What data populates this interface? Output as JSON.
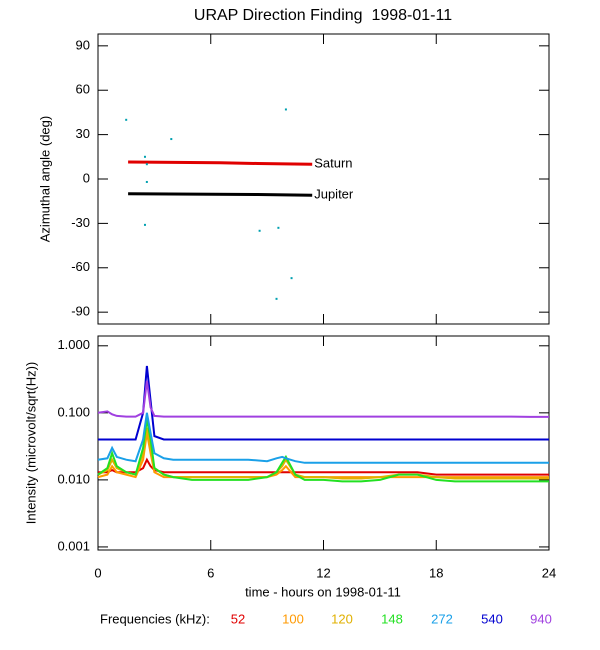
{
  "chart_data": [
    {
      "type": "scatter",
      "title": "URAP Direction Finding  1998-01-11",
      "ylabel": "Azimuthal angle (deg)",
      "xlim": [
        0,
        24
      ],
      "xticks": [
        0,
        6,
        12,
        18,
        24
      ],
      "ylim": [
        -98,
        98
      ],
      "yticks": [
        -90,
        -60,
        -30,
        0,
        30,
        60,
        90
      ],
      "color": "#00a0b0",
      "x": [
        1.5,
        2.5,
        2.6,
        2.6,
        2.5,
        3.9,
        10,
        8.6,
        9.6,
        10.3,
        9.5
      ],
      "values": [
        40,
        15,
        10,
        -2,
        -31,
        27,
        47,
        -35,
        -33,
        -67,
        -81
      ],
      "series": [
        {
          "name": "Saturn",
          "color": "#e00000",
          "x": [
            1.6,
            6.5,
            8.5,
            11.4
          ],
          "values": [
            11.5,
            11,
            10.5,
            10
          ]
        },
        {
          "name": "Jupiter",
          "color": "#000000",
          "x": [
            1.6,
            8.5,
            11.4
          ],
          "values": [
            -10,
            -10.5,
            -11
          ]
        }
      ]
    },
    {
      "type": "line",
      "log_scale": true,
      "ylabel": "Intensity (microvolt/sqrt(Hz))",
      "xlabel": "time - hours on 1998-01-11",
      "legend_title": "Frequencies (kHz):",
      "xlim": [
        0,
        24
      ],
      "xticks": [
        0,
        6,
        12,
        18,
        24
      ],
      "ylim": [
        0.0009,
        1.4
      ],
      "yticks": [
        {
          "value": 0.001,
          "label": "0.001"
        },
        {
          "value": 0.01,
          "label": "0.010"
        },
        {
          "value": 0.1,
          "label": "0.100"
        },
        {
          "value": 1,
          "label": "1.000"
        }
      ],
      "x": [
        0,
        0.5,
        0.75,
        1,
        1.5,
        2,
        2.4,
        2.6,
        2.8,
        3,
        3.5,
        4,
        5,
        6,
        7,
        8,
        9,
        9.5,
        9.8,
        10,
        10.5,
        11,
        12,
        13,
        14,
        15,
        16,
        17,
        18,
        19,
        20,
        21,
        22,
        23,
        24
      ],
      "series": [
        {
          "name": "52",
          "color": "#e00000",
          "values": [
            0.013,
            0.013,
            0.014,
            0.013,
            0.013,
            0.013,
            0.015,
            0.02,
            0.016,
            0.014,
            0.013,
            0.013,
            0.013,
            0.013,
            0.013,
            0.013,
            0.013,
            0.013,
            0.013,
            0.013,
            0.013,
            0.013,
            0.013,
            0.013,
            0.013,
            0.013,
            0.013,
            0.013,
            0.012,
            0.012,
            0.012,
            0.012,
            0.012,
            0.012,
            0.012
          ]
        },
        {
          "name": "100",
          "color": "#ff9900",
          "values": [
            0.011,
            0.012,
            0.016,
            0.013,
            0.012,
            0.011,
            0.02,
            0.05,
            0.025,
            0.013,
            0.011,
            0.011,
            0.011,
            0.011,
            0.011,
            0.011,
            0.011,
            0.012,
            0.014,
            0.016,
            0.011,
            0.011,
            0.011,
            0.011,
            0.011,
            0.011,
            0.011,
            0.011,
            0.011,
            0.011,
            0.011,
            0.011,
            0.011,
            0.011,
            0.011
          ]
        },
        {
          "name": "120",
          "color": "#e0b000",
          "values": [
            0.012,
            0.014,
            0.02,
            0.015,
            0.013,
            0.012,
            0.025,
            0.06,
            0.03,
            0.015,
            0.012,
            0.011,
            0.011,
            0.011,
            0.011,
            0.011,
            0.011,
            0.013,
            0.016,
            0.02,
            0.012,
            0.011,
            0.011,
            0.0105,
            0.0105,
            0.011,
            0.012,
            0.012,
            0.011,
            0.0105,
            0.0105,
            0.0105,
            0.0105,
            0.0105,
            0.0105
          ]
        },
        {
          "name": "148",
          "color": "#22e022",
          "values": [
            0.012,
            0.015,
            0.025,
            0.016,
            0.013,
            0.012,
            0.03,
            0.08,
            0.04,
            0.015,
            0.012,
            0.011,
            0.01,
            0.01,
            0.01,
            0.01,
            0.011,
            0.013,
            0.018,
            0.022,
            0.012,
            0.01,
            0.01,
            0.0095,
            0.0095,
            0.01,
            0.012,
            0.012,
            0.01,
            0.0095,
            0.0095,
            0.0095,
            0.0095,
            0.0095,
            0.0095
          ]
        },
        {
          "name": "272",
          "color": "#1aa0e8",
          "values": [
            0.02,
            0.021,
            0.03,
            0.022,
            0.02,
            0.019,
            0.04,
            0.1,
            0.05,
            0.025,
            0.021,
            0.02,
            0.02,
            0.02,
            0.02,
            0.02,
            0.019,
            0.021,
            0.022,
            0.021,
            0.019,
            0.018,
            0.018,
            0.018,
            0.018,
            0.018,
            0.018,
            0.018,
            0.018,
            0.018,
            0.018,
            0.018,
            0.018,
            0.018,
            0.018
          ]
        },
        {
          "name": "540",
          "color": "#0000d0",
          "values": [
            0.04,
            0.04,
            0.04,
            0.04,
            0.04,
            0.04,
            0.1,
            0.5,
            0.15,
            0.045,
            0.04,
            0.04,
            0.04,
            0.04,
            0.04,
            0.04,
            0.04,
            0.04,
            0.04,
            0.04,
            0.04,
            0.04,
            0.04,
            0.04,
            0.04,
            0.04,
            0.04,
            0.04,
            0.04,
            0.04,
            0.04,
            0.04,
            0.04,
            0.04,
            0.04
          ]
        },
        {
          "name": "940",
          "color": "#a040e0",
          "values": [
            0.1,
            0.105,
            0.095,
            0.09,
            0.088,
            0.088,
            0.1,
            0.3,
            0.12,
            0.09,
            0.088,
            0.088,
            0.088,
            0.088,
            0.088,
            0.088,
            0.088,
            0.088,
            0.088,
            0.088,
            0.088,
            0.088,
            0.088,
            0.088,
            0.088,
            0.088,
            0.088,
            0.088,
            0.088,
            0.088,
            0.088,
            0.088,
            0.088,
            0.087,
            0.087
          ]
        }
      ]
    }
  ]
}
